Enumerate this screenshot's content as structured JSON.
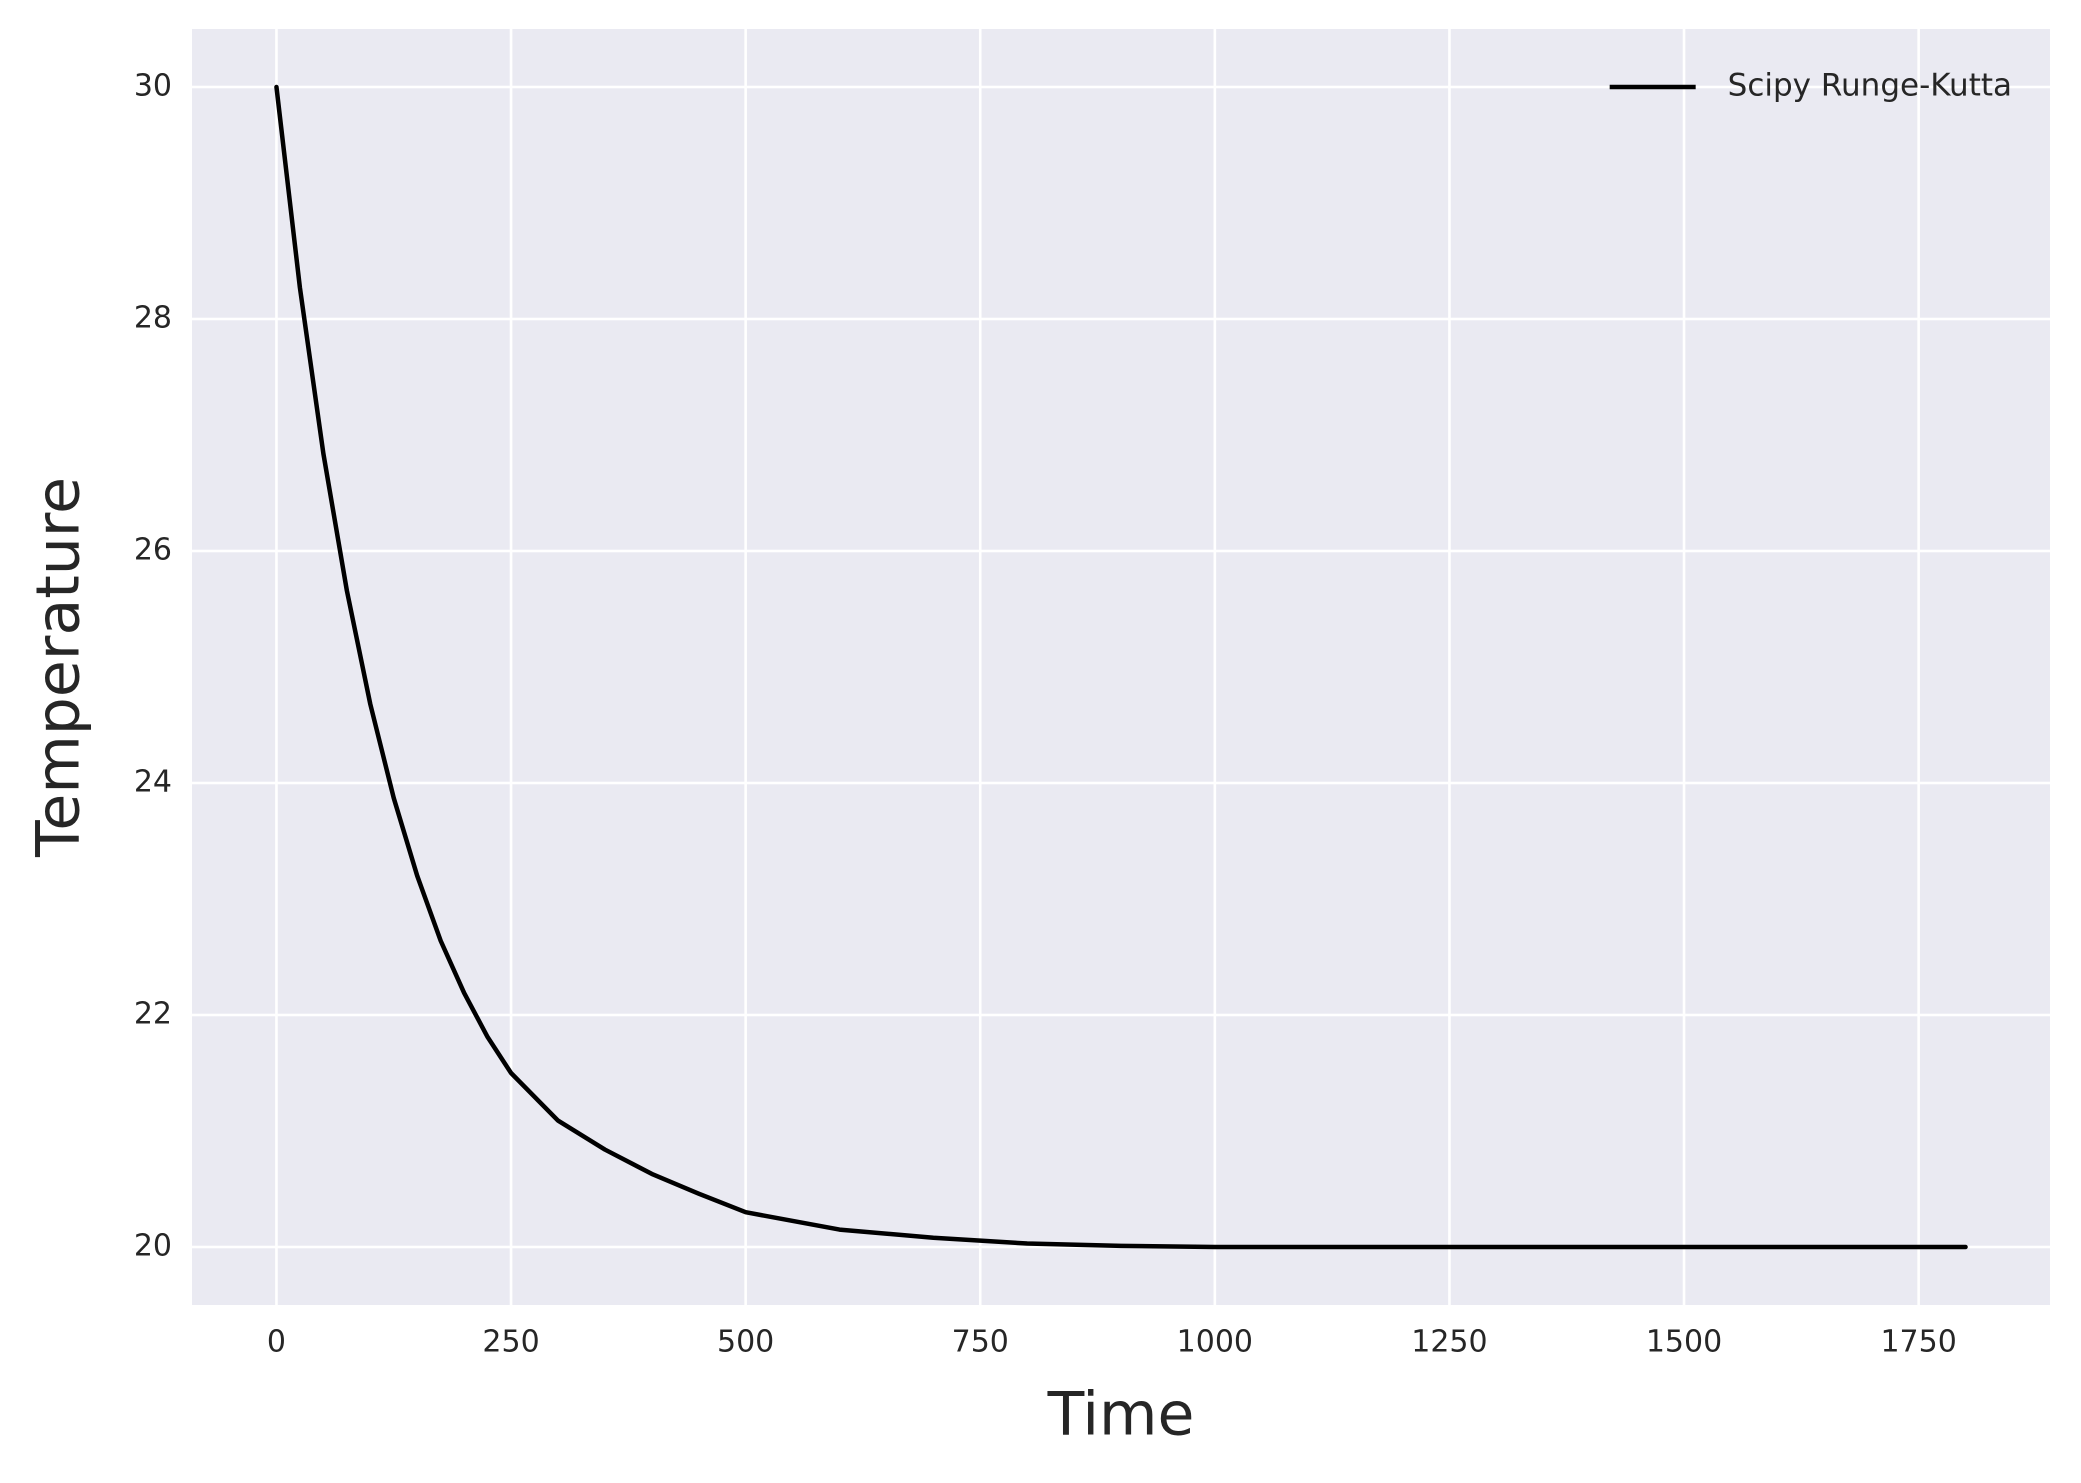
{
  "chart_data": {
    "type": "line",
    "xlabel": "Time",
    "ylabel": "Temperature",
    "x": [
      0,
      25,
      50,
      75,
      100,
      125,
      150,
      175,
      200,
      225,
      250,
      300,
      350,
      400,
      450,
      500,
      600,
      700,
      800,
      900,
      1000,
      1200,
      1400,
      1600,
      1800
    ],
    "series": [
      {
        "name": "Scipy Runge-Kutta",
        "color": "#000000",
        "values": [
          30,
          28.27,
          26.84,
          25.66,
          24.68,
          23.87,
          23.2,
          22.64,
          22.19,
          21.81,
          21.5,
          21.09,
          20.84,
          20.63,
          20.46,
          20.3,
          20.15,
          20.08,
          20.03,
          20.01,
          20.0,
          20.0,
          20.0,
          20.0,
          20.0
        ]
      }
    ],
    "xlim": [
      -90,
      1890
    ],
    "ylim": [
      19.5,
      30.5
    ],
    "xticks": [
      0,
      250,
      500,
      750,
      1000,
      1250,
      1500,
      1750
    ],
    "yticks": [
      20,
      22,
      24,
      26,
      28,
      30
    ],
    "grid": true,
    "legend": "upper right",
    "background": "#eaeaf2"
  }
}
